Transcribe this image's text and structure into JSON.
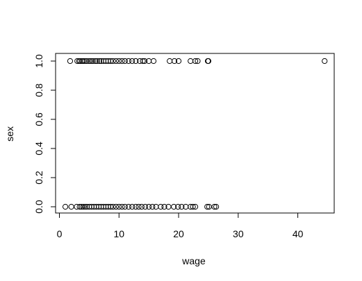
{
  "chart_data": {
    "type": "scatter",
    "title": "",
    "xlabel": "wage",
    "ylabel": "sex",
    "xlim": [
      0,
      45
    ],
    "ylim": [
      0,
      1
    ],
    "x_ticks": [
      0,
      10,
      20,
      30,
      40
    ],
    "y_ticks": [
      0.0,
      0.2,
      0.4,
      0.6,
      0.8,
      1.0
    ],
    "x_tick_labels": [
      "0",
      "10",
      "20",
      "30",
      "40"
    ],
    "y_tick_labels": [
      "0.0",
      "0.2",
      "0.4",
      "0.6",
      "0.8",
      "1.0"
    ],
    "grid": false,
    "marker": "open-circle",
    "series": [
      {
        "values": [
          {
            "x": 1.8,
            "y": 1
          },
          {
            "x": 3.0,
            "y": 1
          },
          {
            "x": 3.3,
            "y": 1
          },
          {
            "x": 3.5,
            "y": 1
          },
          {
            "x": 3.8,
            "y": 1
          },
          {
            "x": 4.0,
            "y": 1
          },
          {
            "x": 4.3,
            "y": 1
          },
          {
            "x": 4.6,
            "y": 1
          },
          {
            "x": 5.0,
            "y": 1
          },
          {
            "x": 5.3,
            "y": 1
          },
          {
            "x": 5.6,
            "y": 1
          },
          {
            "x": 6.0,
            "y": 1
          },
          {
            "x": 6.3,
            "y": 1
          },
          {
            "x": 6.7,
            "y": 1
          },
          {
            "x": 7.0,
            "y": 1
          },
          {
            "x": 7.4,
            "y": 1
          },
          {
            "x": 7.8,
            "y": 1
          },
          {
            "x": 8.2,
            "y": 1
          },
          {
            "x": 8.6,
            "y": 1
          },
          {
            "x": 9.0,
            "y": 1
          },
          {
            "x": 9.5,
            "y": 1
          },
          {
            "x": 10.0,
            "y": 1
          },
          {
            "x": 10.5,
            "y": 1
          },
          {
            "x": 11.0,
            "y": 1
          },
          {
            "x": 11.6,
            "y": 1
          },
          {
            "x": 12.2,
            "y": 1
          },
          {
            "x": 12.8,
            "y": 1
          },
          {
            "x": 13.5,
            "y": 1
          },
          {
            "x": 14.0,
            "y": 1
          },
          {
            "x": 14.3,
            "y": 1
          },
          {
            "x": 15.0,
            "y": 1
          },
          {
            "x": 15.8,
            "y": 1
          },
          {
            "x": 18.5,
            "y": 1
          },
          {
            "x": 19.3,
            "y": 1
          },
          {
            "x": 20.0,
            "y": 1
          },
          {
            "x": 22.0,
            "y": 1
          },
          {
            "x": 22.8,
            "y": 1
          },
          {
            "x": 23.2,
            "y": 1
          },
          {
            "x": 24.9,
            "y": 1
          },
          {
            "x": 25.0,
            "y": 1
          },
          {
            "x": 44.5,
            "y": 1
          },
          {
            "x": 1.0,
            "y": 0
          },
          {
            "x": 2.0,
            "y": 0
          },
          {
            "x": 2.9,
            "y": 0
          },
          {
            "x": 3.4,
            "y": 0
          },
          {
            "x": 3.7,
            "y": 0
          },
          {
            "x": 4.0,
            "y": 0
          },
          {
            "x": 4.3,
            "y": 0
          },
          {
            "x": 4.6,
            "y": 0
          },
          {
            "x": 5.0,
            "y": 0
          },
          {
            "x": 5.4,
            "y": 0
          },
          {
            "x": 5.8,
            "y": 0
          },
          {
            "x": 6.2,
            "y": 0
          },
          {
            "x": 6.6,
            "y": 0
          },
          {
            "x": 7.0,
            "y": 0
          },
          {
            "x": 7.4,
            "y": 0
          },
          {
            "x": 7.8,
            "y": 0
          },
          {
            "x": 8.2,
            "y": 0
          },
          {
            "x": 8.6,
            "y": 0
          },
          {
            "x": 9.0,
            "y": 0
          },
          {
            "x": 9.5,
            "y": 0
          },
          {
            "x": 10.0,
            "y": 0
          },
          {
            "x": 10.5,
            "y": 0
          },
          {
            "x": 11.0,
            "y": 0
          },
          {
            "x": 11.6,
            "y": 0
          },
          {
            "x": 12.2,
            "y": 0
          },
          {
            "x": 12.8,
            "y": 0
          },
          {
            "x": 13.3,
            "y": 0
          },
          {
            "x": 13.8,
            "y": 0
          },
          {
            "x": 14.4,
            "y": 0
          },
          {
            "x": 15.0,
            "y": 0
          },
          {
            "x": 15.6,
            "y": 0
          },
          {
            "x": 16.2,
            "y": 0
          },
          {
            "x": 17.0,
            "y": 0
          },
          {
            "x": 17.6,
            "y": 0
          },
          {
            "x": 18.3,
            "y": 0
          },
          {
            "x": 19.2,
            "y": 0
          },
          {
            "x": 19.9,
            "y": 0
          },
          {
            "x": 20.5,
            "y": 0
          },
          {
            "x": 21.2,
            "y": 0
          },
          {
            "x": 22.0,
            "y": 0
          },
          {
            "x": 22.4,
            "y": 0
          },
          {
            "x": 22.8,
            "y": 0
          },
          {
            "x": 24.8,
            "y": 0
          },
          {
            "x": 25.1,
            "y": 0
          },
          {
            "x": 26.0,
            "y": 0
          },
          {
            "x": 26.3,
            "y": 0
          }
        ]
      }
    ]
  }
}
